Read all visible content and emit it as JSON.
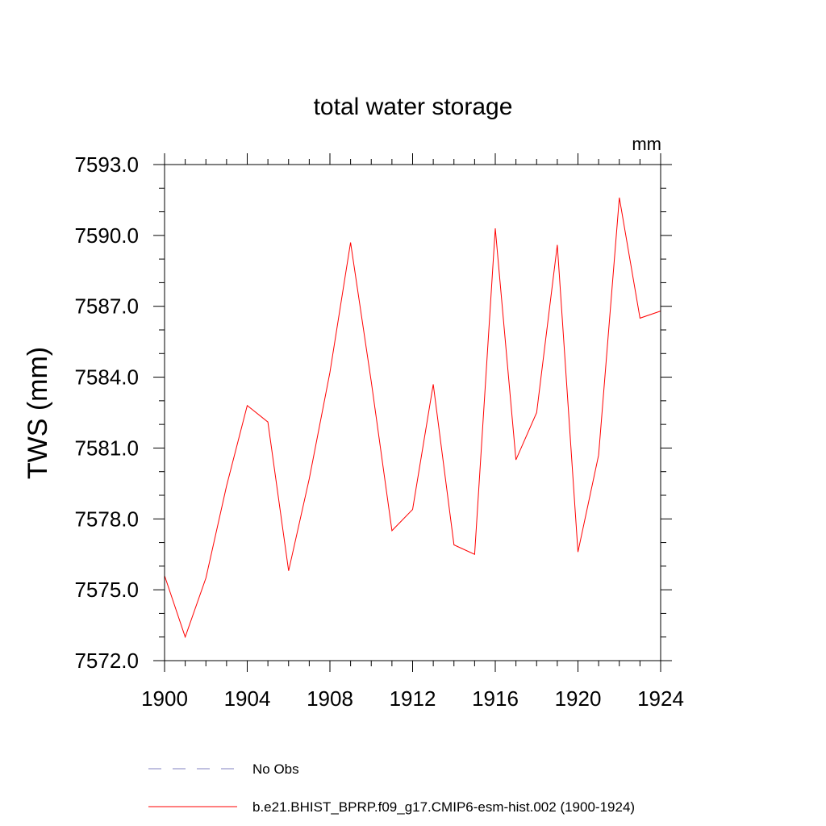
{
  "chart_data": {
    "type": "line",
    "title": "total water storage",
    "units_label": "mm",
    "xlabel": "",
    "ylabel": "TWS  (mm)",
    "xlim": [
      1900,
      1924
    ],
    "ylim": [
      7572.0,
      7593.0
    ],
    "x_ticks": [
      1900,
      1904,
      1908,
      1912,
      1916,
      1920,
      1924
    ],
    "x_tick_labels": [
      "1900",
      "1904",
      "1908",
      "1912",
      "1916",
      "1920",
      "1924"
    ],
    "y_ticks": [
      7572.0,
      7575.0,
      7578.0,
      7581.0,
      7584.0,
      7587.0,
      7590.0,
      7593.0
    ],
    "y_tick_labels": [
      "7572.0",
      "7575.0",
      "7578.0",
      "7581.0",
      "7584.0",
      "7587.0",
      "7590.0",
      "7593.0"
    ],
    "grid": false,
    "legend_position": "bottom",
    "series": [
      {
        "name": "No Obs",
        "color": "#8080c0",
        "style": "dashed",
        "x": [],
        "values": []
      },
      {
        "name": "b.e21.BHIST_BPRP.f09_g17.CMIP6-esm-hist.002 (1900-1924)",
        "color": "#ff0000",
        "style": "solid",
        "x": [
          1900,
          1901,
          1902,
          1903,
          1904,
          1905,
          1906,
          1907,
          1908,
          1909,
          1910,
          1911,
          1912,
          1913,
          1914,
          1915,
          1916,
          1917,
          1918,
          1919,
          1920,
          1921,
          1922,
          1923,
          1924
        ],
        "values": [
          7575.6,
          7573.0,
          7575.5,
          7579.4,
          7582.8,
          7582.1,
          7575.8,
          7579.7,
          7584.2,
          7589.7,
          7583.8,
          7577.5,
          7578.4,
          7583.7,
          7576.9,
          7576.5,
          7590.3,
          7580.5,
          7582.5,
          7589.6,
          7576.6,
          7580.7,
          7591.6,
          7586.5,
          7586.8
        ]
      }
    ]
  }
}
